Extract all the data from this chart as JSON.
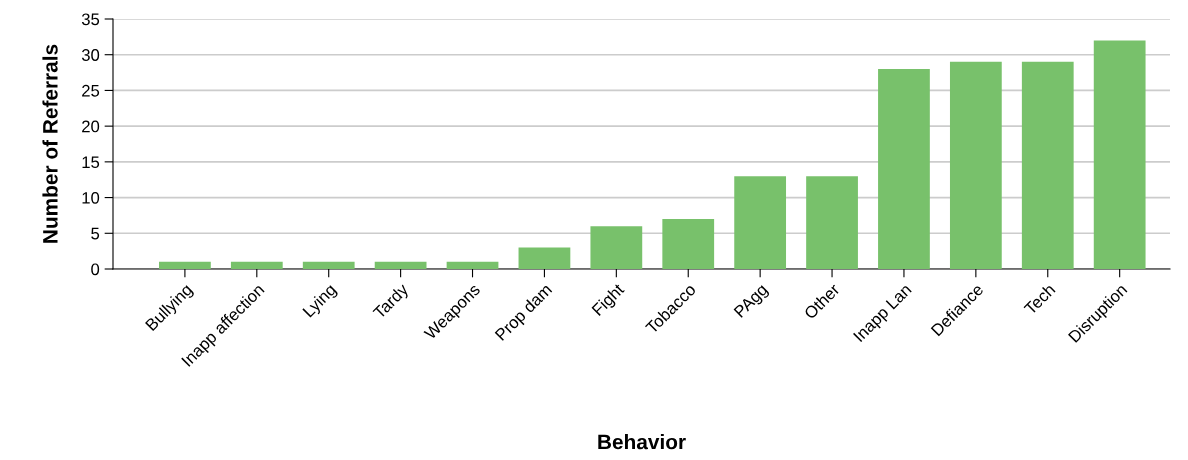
{
  "chart_data": {
    "type": "bar",
    "xlabel": "Behavior",
    "ylabel": "Number of Referrals",
    "categories": [
      "Bullying",
      "Inapp affection",
      "Lying",
      "Tardy",
      "Weapons",
      "Prop dam",
      "Fight",
      "Tobacco",
      "PAgg",
      "Other",
      "Inapp Lan",
      "Defiance",
      "Tech",
      "Disruption"
    ],
    "values": [
      1,
      1,
      1,
      1,
      1,
      3,
      6,
      7,
      13,
      13,
      28,
      29,
      29,
      32
    ],
    "color": "#78c16b",
    "ylim": [
      0,
      35
    ],
    "yticks": [
      0,
      5,
      10,
      15,
      20,
      25,
      30,
      35
    ],
    "grid": "y",
    "legend": false
  }
}
